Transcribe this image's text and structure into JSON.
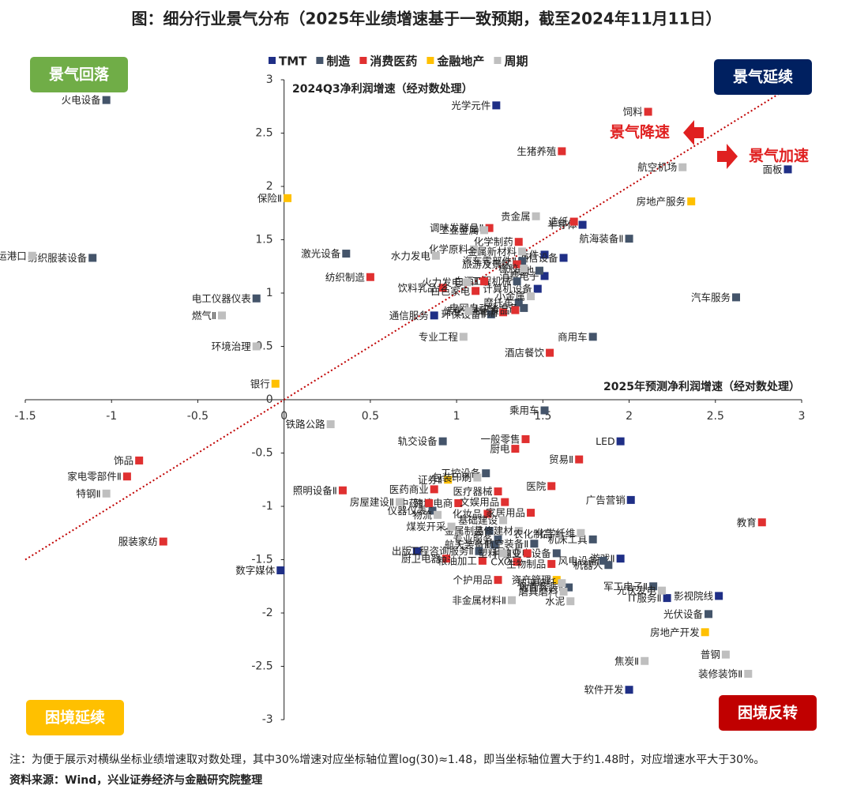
{
  "chart_data": {
    "type": "scatter",
    "title": "图：细分行业景气分布（2025年业绩增速基于一致预期，截至2024年11月11日）",
    "x_label": "2025年预测净利润增速（经对数处理）",
    "y_label": "2024Q3净利润增速（经对数处理）",
    "xlim": [
      -1.5,
      3
    ],
    "ylim": [
      -3,
      3
    ],
    "xticks": [
      -1.5,
      -1,
      -0.5,
      0,
      0.5,
      1,
      1.5,
      2,
      2.5,
      3
    ],
    "yticks": [
      -3,
      -2.5,
      -2,
      -1.5,
      -1,
      -0.5,
      0,
      0.5,
      1,
      1.5,
      2,
      2.5,
      3
    ],
    "diagonal": true,
    "quadrants": [
      {
        "label": "景气回落",
        "color": "#70ad47",
        "corner": "top-left"
      },
      {
        "label": "景气延续",
        "color": "#002060",
        "corner": "top-right"
      },
      {
        "label": "困境延续",
        "color": "#ffc000",
        "corner": "bottom-left"
      },
      {
        "label": "困境反转",
        "color": "#c00000",
        "corner": "bottom-right"
      }
    ],
    "annotations": [
      {
        "text": "景气降速",
        "direction": "left",
        "color": "#e02020"
      },
      {
        "text": "景气加速",
        "direction": "right",
        "color": "#e02020"
      }
    ],
    "series": [
      {
        "name": "TMT",
        "color": "#1f2f86",
        "points": [
          {
            "label": "光学元件",
            "x": 1.23,
            "y": 2.76
          },
          {
            "label": "面板",
            "x": 2.92,
            "y": 2.16
          },
          {
            "label": "半导体",
            "x": 1.73,
            "y": 1.64
          },
          {
            "label": "元件",
            "x": 1.51,
            "y": 1.36
          },
          {
            "label": "通信设备",
            "x": 1.62,
            "y": 1.33
          },
          {
            "label": "消费电子",
            "x": 1.51,
            "y": 1.16
          },
          {
            "label": "计算机设备",
            "x": 1.47,
            "y": 1.04
          },
          {
            "label": "通信服务",
            "x": 0.87,
            "y": 0.79
          },
          {
            "label": "LED",
            "x": 1.95,
            "y": -0.39
          },
          {
            "label": "广告营销",
            "x": 2.01,
            "y": -0.94
          },
          {
            "label": "出版",
            "x": 0.77,
            "y": -1.42
          },
          {
            "label": "游戏Ⅱ",
            "x": 1.95,
            "y": -1.49
          },
          {
            "label": "数字媒体",
            "x": -0.02,
            "y": -1.6
          },
          {
            "label": "影视院线",
            "x": 2.52,
            "y": -1.84
          },
          {
            "label": "IT服务Ⅱ",
            "x": 2.22,
            "y": -1.86
          },
          {
            "label": "软件开发",
            "x": 2.0,
            "y": -2.72
          }
        ]
      },
      {
        "name": "制造",
        "color": "#44546a",
        "points": [
          {
            "label": "火电设备",
            "x": -1.03,
            "y": 2.81
          },
          {
            "label": "纺织服装设备",
            "x": -1.11,
            "y": 1.33
          },
          {
            "label": "航海装备Ⅱ",
            "x": 2.0,
            "y": 1.51
          },
          {
            "label": "汽车零部件Ⅱ",
            "x": 1.38,
            "y": 1.3
          },
          {
            "label": "激光设备",
            "x": 0.36,
            "y": 1.37
          },
          {
            "label": "电池",
            "x": 1.48,
            "y": 1.21
          },
          {
            "label": "工程机械",
            "x": 1.35,
            "y": 1.11
          },
          {
            "label": "电工仪器仪表",
            "x": -0.16,
            "y": 0.95
          },
          {
            "label": "汽车服务",
            "x": 2.62,
            "y": 0.96
          },
          {
            "label": "摩托车",
            "x": 1.36,
            "y": 0.91
          },
          {
            "label": "电网自动化设备",
            "x": 1.39,
            "y": 0.86
          },
          {
            "label": "环保设备Ⅱ",
            "x": 1.2,
            "y": 0.8
          },
          {
            "label": "商用车",
            "x": 1.79,
            "y": 0.59
          },
          {
            "label": "乘用车",
            "x": 1.51,
            "y": -0.1
          },
          {
            "label": "轨交设备",
            "x": 0.92,
            "y": -0.39
          },
          {
            "label": "工控设备",
            "x": 1.17,
            "y": -0.69
          },
          {
            "label": "仪器仪表",
            "x": 0.86,
            "y": -1.04
          },
          {
            "label": "金属制品",
            "x": 1.19,
            "y": -1.23
          },
          {
            "label": "专业服务",
            "x": 1.24,
            "y": -1.31
          },
          {
            "label": "航天装备Ⅱ",
            "x": 1.22,
            "y": -1.36
          },
          {
            "label": "机床工具",
            "x": 1.79,
            "y": -1.31
          },
          {
            "label": "航空装备Ⅱ",
            "x": 1.45,
            "y": -1.35
          },
          {
            "label": "工程咨询服务Ⅱ",
            "x": 1.13,
            "y": -1.42
          },
          {
            "label": "输变电设备",
            "x": 1.58,
            "y": -1.44
          },
          {
            "label": "风电设备",
            "x": 1.85,
            "y": -1.51
          },
          {
            "label": "机器人",
            "x": 1.88,
            "y": -1.55
          },
          {
            "label": "军工电子Ⅱ",
            "x": 2.14,
            "y": -1.75
          },
          {
            "label": "地面兵装Ⅱ",
            "x": 1.65,
            "y": -1.76
          },
          {
            "label": "光伏设备",
            "x": 2.46,
            "y": -2.01
          }
        ]
      },
      {
        "name": "消费医药",
        "color": "#e03030",
        "points": [
          {
            "label": "饲料",
            "x": 2.11,
            "y": 2.7
          },
          {
            "label": "生猪养殖",
            "x": 1.61,
            "y": 2.33
          },
          {
            "label": "调味发酵品Ⅱ",
            "x": 1.19,
            "y": 1.61
          },
          {
            "label": "化学制药",
            "x": 1.36,
            "y": 1.48
          },
          {
            "label": "造纸",
            "x": 1.68,
            "y": 1.67
          },
          {
            "label": "旅游及景区",
            "x": 1.35,
            "y": 1.27
          },
          {
            "label": "纺织制造",
            "x": 0.5,
            "y": 1.15
          },
          {
            "label": "白酒Ⅱ",
            "x": 1.16,
            "y": 1.11
          },
          {
            "label": "饮料乳品",
            "x": 0.92,
            "y": 1.05
          },
          {
            "label": "白色家电",
            "x": 1.11,
            "y": 1.02
          },
          {
            "label": "啤酒",
            "x": 1.27,
            "y": 0.82
          },
          {
            "label": "休闲食品",
            "x": 1.34,
            "y": 0.84
          },
          {
            "label": "酒店餐饮",
            "x": 1.54,
            "y": 0.44
          },
          {
            "label": "一般零售",
            "x": 1.4,
            "y": -0.37
          },
          {
            "label": "厨电",
            "x": 1.34,
            "y": -0.46
          },
          {
            "label": "贸易Ⅱ",
            "x": 1.71,
            "y": -0.56
          },
          {
            "label": "饰品",
            "x": -0.84,
            "y": -0.57
          },
          {
            "label": "家电零部件Ⅱ",
            "x": -0.91,
            "y": -0.72
          },
          {
            "label": "医疗器械",
            "x": 1.24,
            "y": -0.86
          },
          {
            "label": "医院",
            "x": 1.55,
            "y": -0.81
          },
          {
            "label": "照明设备Ⅱ",
            "x": 0.34,
            "y": -0.85
          },
          {
            "label": "医药商业",
            "x": 0.87,
            "y": -0.84
          },
          {
            "label": "跨境电商",
            "x": 1.01,
            "y": -0.97
          },
          {
            "label": "文娱用品",
            "x": 1.28,
            "y": -0.96
          },
          {
            "label": "中药Ⅱ",
            "x": 0.84,
            "y": -0.97
          },
          {
            "label": "化妆品",
            "x": 1.18,
            "y": -1.07
          },
          {
            "label": "家居用品",
            "x": 1.43,
            "y": -1.06
          },
          {
            "label": "教育",
            "x": 2.77,
            "y": -1.15
          },
          {
            "label": "种植业",
            "x": 1.41,
            "y": -1.44
          },
          {
            "label": "服装家纺",
            "x": -0.7,
            "y": -1.33
          },
          {
            "label": "厨卫电器",
            "x": 0.94,
            "y": -1.49
          },
          {
            "label": "粮油加工",
            "x": 1.15,
            "y": -1.51
          },
          {
            "label": "CXO",
            "x": 1.35,
            "y": -1.52
          },
          {
            "label": "生物制品",
            "x": 1.55,
            "y": -1.54
          },
          {
            "label": "个护用品",
            "x": 1.24,
            "y": -1.69
          }
        ]
      },
      {
        "name": "金融地产",
        "color": "#ffc000",
        "points": [
          {
            "label": "保险Ⅱ",
            "x": 0.02,
            "y": 1.89
          },
          {
            "label": "房地产服务",
            "x": 2.36,
            "y": 1.86
          },
          {
            "label": "银行",
            "x": -0.05,
            "y": 0.15
          },
          {
            "label": "证券Ⅱ",
            "x": 0.95,
            "y": -0.75
          },
          {
            "label": "资产管理",
            "x": 1.58,
            "y": -1.69
          },
          {
            "label": "房地产开发",
            "x": 2.44,
            "y": -2.18
          }
        ]
      },
      {
        "name": "周期",
        "color": "#bfbfbf",
        "points": [
          {
            "label": "航运港口",
            "x": -1.46,
            "y": 1.35
          },
          {
            "label": "航空机场",
            "x": 2.31,
            "y": 2.18
          },
          {
            "label": "贵金属",
            "x": 1.46,
            "y": 1.72
          },
          {
            "label": "工业金属",
            "x": 1.16,
            "y": 1.59
          },
          {
            "label": "化学原料",
            "x": 1.1,
            "y": 1.41
          },
          {
            "label": "金属新材料",
            "x": 1.38,
            "y": 1.39
          },
          {
            "label": "水力发电",
            "x": 0.88,
            "y": 1.35
          },
          {
            "label": "橡胶",
            "x": 1.39,
            "y": 1.23
          },
          {
            "label": "火力发电",
            "x": 1.06,
            "y": 1.1
          },
          {
            "label": "小金属",
            "x": 1.43,
            "y": 0.97
          },
          {
            "label": "燃气Ⅱ",
            "x": -0.36,
            "y": 0.79
          },
          {
            "label": "炼化",
            "x": 1.07,
            "y": 0.83
          },
          {
            "label": "专业工程",
            "x": 1.04,
            "y": 0.59
          },
          {
            "label": "环境治理",
            "x": -0.16,
            "y": 0.5
          },
          {
            "label": "铁路公路",
            "x": 0.27,
            "y": -0.23
          },
          {
            "label": "包装印刷",
            "x": 1.12,
            "y": -0.73
          },
          {
            "label": "特钢Ⅱ",
            "x": -1.03,
            "y": -0.88
          },
          {
            "label": "房屋建设Ⅱ",
            "x": 0.67,
            "y": -0.96
          },
          {
            "label": "基础建设",
            "x": 1.27,
            "y": -1.13
          },
          {
            "label": "物流",
            "x": 0.89,
            "y": -1.08
          },
          {
            "label": "煤炭开采",
            "x": 0.97,
            "y": -1.19
          },
          {
            "label": "装修建材",
            "x": 1.36,
            "y": -1.23
          },
          {
            "label": "农化制品",
            "x": 1.59,
            "y": -1.26
          },
          {
            "label": "化学纤维",
            "x": 1.72,
            "y": -1.25
          },
          {
            "label": "塑料",
            "x": 1.27,
            "y": -1.44
          },
          {
            "label": "玻璃玻纤",
            "x": 1.61,
            "y": -1.72
          },
          {
            "label": "光伏发电",
            "x": 2.19,
            "y": -1.79
          },
          {
            "label": "磨具磨料",
            "x": 1.62,
            "y": -1.8
          },
          {
            "label": "非金属材料Ⅱ",
            "x": 1.32,
            "y": -1.88
          },
          {
            "label": "水泥",
            "x": 1.66,
            "y": -1.89
          },
          {
            "label": "普钢",
            "x": 2.56,
            "y": -2.39
          },
          {
            "label": "焦炭Ⅱ",
            "x": 2.09,
            "y": -2.45
          },
          {
            "label": "装修装饰Ⅱ",
            "x": 2.69,
            "y": -2.57
          }
        ]
      }
    ]
  },
  "note": "注：为便于展示对横纵坐标业绩增速取对数处理，其中30%增速对应坐标轴位置log(30)≈1.48，即当坐标轴位置大于约1.48时，对应增速水平大于30%。",
  "source": "资料来源：Wind，兴业证券经济与金融研究院整理"
}
